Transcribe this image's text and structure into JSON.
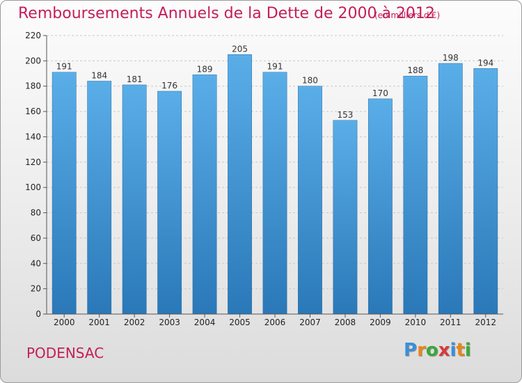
{
  "title": "Remboursements Annuels de la Dette de 2000 à 2012",
  "subtitle": "(en milliers d'€)",
  "commune": "PODENSAC",
  "logo": {
    "letters": [
      "P",
      "r",
      "o",
      "x",
      "i",
      "t",
      "i"
    ],
    "colors": [
      "#3a8fd8",
      "#e8861a",
      "#3aa83a",
      "#d83a3a",
      "#3a8fd8",
      "#e8861a",
      "#3aa83a"
    ]
  },
  "chart_data": {
    "type": "bar",
    "categories": [
      "2000",
      "2001",
      "2002",
      "2003",
      "2004",
      "2005",
      "2006",
      "2007",
      "2008",
      "2009",
      "2010",
      "2011",
      "2012"
    ],
    "values": [
      191,
      184,
      181,
      176,
      189,
      205,
      191,
      180,
      153,
      170,
      188,
      198,
      194
    ],
    "title": "Remboursements Annuels de la Dette de 2000 à 2012",
    "xlabel": "",
    "ylabel": "",
    "ylim": [
      0,
      220
    ],
    "yticks": [
      0,
      20,
      40,
      60,
      80,
      100,
      120,
      140,
      160,
      180,
      200,
      220
    ],
    "grid": true,
    "bar_color_top": "#5aaee8",
    "bar_color_bottom": "#2a78b8"
  }
}
